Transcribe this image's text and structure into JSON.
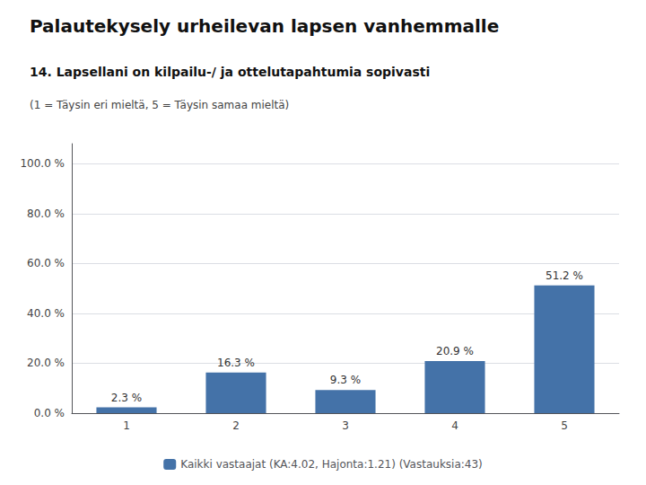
{
  "chart_data": {
    "type": "bar",
    "title": "Palautekysely urheilevan lapsen vanhemmalle",
    "subtitle": "14. Lapsellani on kilpailu-/ ja ottelutapahtumia sopivasti",
    "annotations": [
      "(1 = Täysin eri mieltä, 5 = Täysin samaa mieltä)"
    ],
    "categories": [
      "1",
      "2",
      "3",
      "4",
      "5"
    ],
    "series": [
      {
        "name": "Kaikki vastaajat (KA:4.02, Hajonta:1.21) (Vastauksia:43)",
        "color": "#4472a8",
        "values": [
          2.3,
          16.3,
          9.3,
          20.9,
          51.2
        ],
        "value_labels": [
          "2.3 %",
          "16.3 %",
          "9.3 %",
          "20.9 %",
          "51.2 %"
        ]
      }
    ],
    "data_labels": true,
    "ylim": [
      0,
      108
    ],
    "yticks": [
      {
        "value": 0.0,
        "label": "0.0 %"
      },
      {
        "value": 20.0,
        "label": "20.0 %"
      },
      {
        "value": 40.0,
        "label": "40.0 %"
      },
      {
        "value": 60.0,
        "label": "60.0 %"
      },
      {
        "value": 80.0,
        "label": "80.0 %"
      },
      {
        "value": 100.0,
        "label": "100.0 %"
      }
    ],
    "grid": true,
    "legend": "bottom"
  }
}
